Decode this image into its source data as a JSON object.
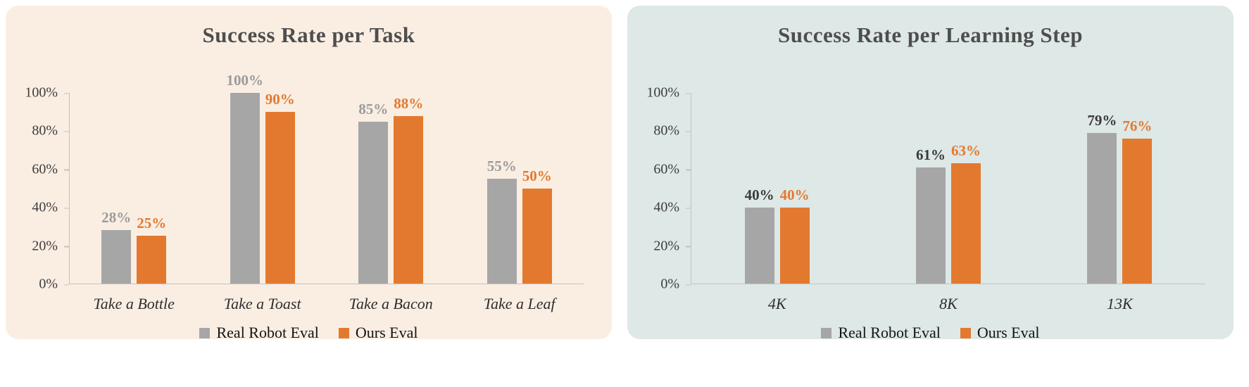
{
  "chart_data": [
    {
      "type": "bar",
      "title": "Success Rate per Task",
      "panel_bg": "#faeee3",
      "categories": [
        "Take a Bottle",
        "Take a Toast",
        "Take a Bacon",
        "Take a Leaf"
      ],
      "series": [
        {
          "name": "Real Robot Eval",
          "color": "#a6a6a6",
          "label_color": "#9b9b9b",
          "values": [
            28,
            100,
            85,
            55
          ],
          "labels": [
            "28%",
            "100%",
            "85%",
            "55%"
          ]
        },
        {
          "name": "Ours Eval",
          "color": "#e3792e",
          "label_color": "#e3792e",
          "values": [
            25,
            90,
            88,
            50
          ],
          "labels": [
            "25%",
            "90%",
            "88%",
            "50%"
          ]
        }
      ],
      "ylim": [
        0,
        100
      ],
      "y_ticks": [
        "0%",
        "20%",
        "40%",
        "60%",
        "80%",
        "100%"
      ],
      "grid": false,
      "legend_position": "bottom",
      "legend": [
        "Real Robot Eval",
        "Ours Eval"
      ]
    },
    {
      "type": "bar",
      "title": "Success Rate per Learning Step",
      "panel_bg": "#dee8e6",
      "categories": [
        "4K",
        "8K",
        "13K"
      ],
      "series": [
        {
          "name": "Real Robot Eval",
          "color": "#a6a6a6",
          "label_color": "#3a3a3a",
          "values": [
            40,
            61,
            79
          ],
          "labels": [
            "40%",
            "61%",
            "79%"
          ]
        },
        {
          "name": "Ours Eval",
          "color": "#e3792e",
          "label_color": "#e3792e",
          "values": [
            40,
            63,
            76
          ],
          "labels": [
            "40%",
            "63%",
            "76%"
          ]
        }
      ],
      "ylim": [
        0,
        100
      ],
      "y_ticks": [
        "0%",
        "20%",
        "40%",
        "60%",
        "80%",
        "100%"
      ],
      "grid": false,
      "legend_position": "bottom",
      "legend": [
        "Real Robot Eval",
        "Ours Eval"
      ]
    }
  ]
}
